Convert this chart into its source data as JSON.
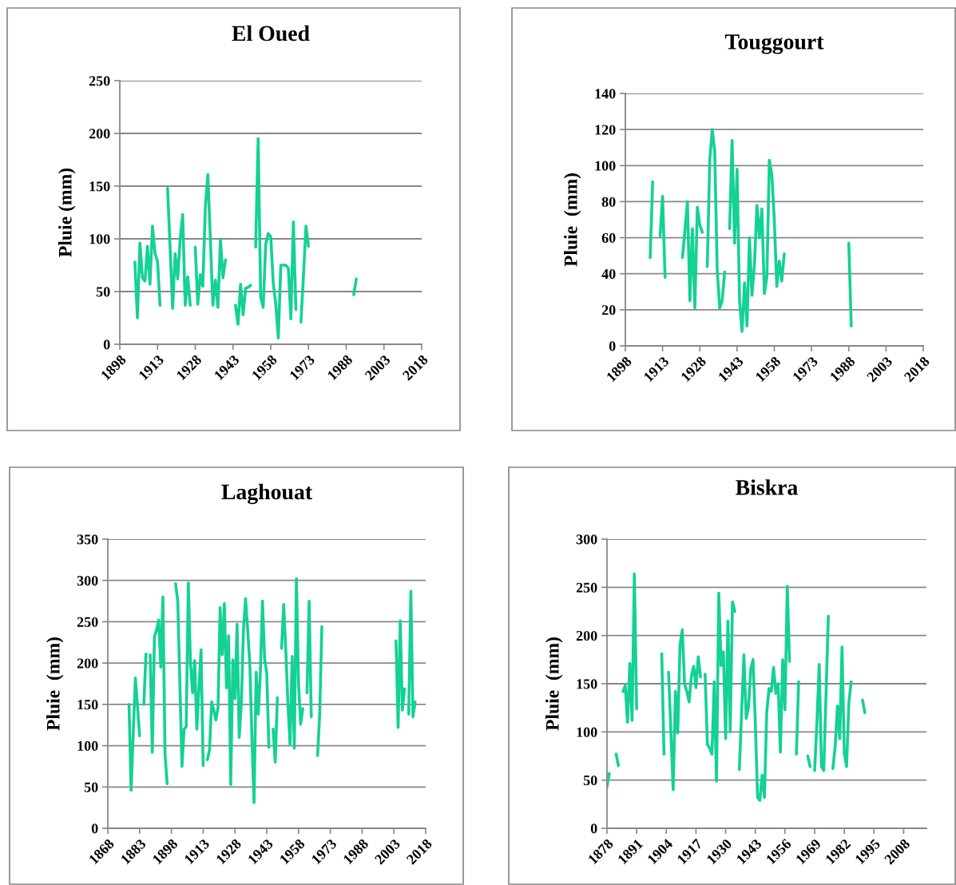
{
  "chart_data": [
    {
      "type": "line",
      "title": "El Oued",
      "ylabel": "Pluie (mm)",
      "xlim": [
        1898,
        2018
      ],
      "xticks": [
        1898,
        1913,
        1928,
        1943,
        1958,
        1973,
        1988,
        2003,
        2018
      ],
      "ylim": [
        0,
        250
      ],
      "yticks": [
        0,
        50,
        100,
        150,
        200,
        250
      ],
      "grid": "y",
      "series": [
        {
          "color": "#14d194",
          "x": [
            1904,
            1905,
            1906,
            1907,
            1908,
            1909,
            1910,
            1911,
            1912,
            1913,
            1914,
            1915,
            1917,
            1918,
            1919,
            1920,
            1921,
            1922,
            1923,
            1924,
            1925,
            1926,
            1927,
            1928,
            1929,
            1930,
            1931,
            1932,
            1933,
            1934,
            1935,
            1936,
            1937,
            1938,
            1939,
            1940,
            1941,
            1944,
            1945,
            1946,
            1947,
            1948,
            1949,
            1950,
            1951,
            1952,
            1953,
            1954,
            1955,
            1956,
            1957,
            1958,
            1959,
            1960,
            1961,
            1962,
            1963,
            1964,
            1965,
            1966,
            1967,
            1968,
            1969,
            1970,
            1971,
            1972,
            1973,
            1974,
            1991,
            1992
          ],
          "values": [
            78,
            25,
            96,
            63,
            60,
            93,
            57,
            112,
            86,
            79,
            37,
            null,
            148,
            91,
            34,
            86,
            62,
            100,
            123,
            37,
            64,
            37,
            null,
            92,
            38,
            66,
            55,
            130,
            161,
            100,
            37,
            61,
            35,
            99,
            63,
            80,
            null,
            37,
            19,
            57,
            28,
            53,
            54,
            56,
            null,
            92,
            195,
            45,
            35,
            95,
            105,
            102,
            58,
            38,
            6,
            75,
            75,
            75,
            72,
            24,
            116,
            33,
            null,
            21,
            65,
            112,
            93,
            null,
            47,
            62
          ]
        }
      ]
    },
    {
      "type": "line",
      "title": "Touggourt",
      "ylabel": "Pluie  (mm)",
      "xlim": [
        1898,
        2018
      ],
      "xticks": [
        1898,
        1913,
        1928,
        1943,
        1958,
        1973,
        1988,
        2003,
        2018
      ],
      "ylim": [
        0,
        140
      ],
      "yticks": [
        0,
        20,
        40,
        60,
        80,
        100,
        120,
        140
      ],
      "grid": "y",
      "series": [
        {
          "color": "#14d194",
          "x": [
            1908,
            1909,
            1910,
            1912,
            1913,
            1914,
            1915,
            1921,
            1922,
            1923,
            1924,
            1925,
            1926,
            1927,
            1928,
            1929,
            1930,
            1931,
            1932,
            1933,
            1934,
            1935,
            1936,
            1937,
            1938,
            1939,
            1940,
            1941,
            1942,
            1943,
            1944,
            1945,
            1946,
            1947,
            1948,
            1949,
            1950,
            1951,
            1952,
            1953,
            1954,
            1955,
            1956,
            1957,
            1958,
            1959,
            1960,
            1961,
            1962,
            1963,
            1988,
            1989
          ],
          "values": [
            49,
            91,
            null,
            61,
            83,
            38,
            null,
            49,
            64,
            80,
            25,
            65,
            21,
            77,
            67,
            63,
            null,
            44,
            103,
            120,
            108,
            42,
            21,
            25,
            41,
            null,
            65,
            114,
            57,
            98,
            25,
            8,
            35,
            11,
            60,
            28,
            45,
            78,
            60,
            76,
            29,
            38,
            103,
            95,
            70,
            33,
            47,
            36,
            51,
            null,
            57,
            11
          ]
        }
      ]
    },
    {
      "type": "line",
      "title": "Laghouat",
      "ylabel": "Pluie  (mm)",
      "xlim": [
        1868,
        2018
      ],
      "xticks": [
        1868,
        1883,
        1898,
        1913,
        1928,
        1943,
        1958,
        1973,
        1988,
        2003,
        2018
      ],
      "ylim": [
        0,
        350
      ],
      "yticks": [
        0,
        50,
        100,
        150,
        200,
        250,
        300,
        350
      ],
      "grid": "y",
      "series": [
        {
          "color": "#14d194",
          "x": [
            1878,
            1879,
            1880,
            1881,
            1882,
            1883,
            1884,
            1885,
            1886,
            1887,
            1888,
            1889,
            1890,
            1891,
            1892,
            1893,
            1894,
            1895,
            1896,
            1897,
            1900,
            1901,
            1902,
            1903,
            1904,
            1905,
            1906,
            1907,
            1908,
            1909,
            1910,
            1911,
            1912,
            1913,
            1914,
            1915,
            1916,
            1917,
            1918,
            1919,
            1920,
            1921,
            1922,
            1923,
            1924,
            1925,
            1926,
            1927,
            1928,
            1929,
            1930,
            1931,
            1932,
            1933,
            1934,
            1935,
            1936,
            1937,
            1938,
            1939,
            1940,
            1941,
            1942,
            1943,
            1944,
            1945,
            1946,
            1947,
            1948,
            1949,
            1950,
            1951,
            1952,
            1953,
            1954,
            1955,
            1956,
            1957,
            1958,
            1959,
            1960,
            1961,
            1962,
            1963,
            1964,
            1965,
            1967,
            1968,
            1969,
            1970,
            2004,
            2005,
            2006,
            2007,
            2008,
            2009,
            2010,
            2011,
            2012,
            2013
          ],
          "values": [
            150,
            46,
            115,
            182,
            148,
            112,
            null,
            150,
            211,
            null,
            210,
            92,
            232,
            240,
            252,
            195,
            280,
            90,
            54,
            null,
            296,
            275,
            175,
            75,
            120,
            123,
            297,
            200,
            164,
            203,
            120,
            170,
            216,
            76,
            null,
            83,
            95,
            153,
            143,
            131,
            146,
            267,
            210,
            272,
            170,
            233,
            53,
            204,
            157,
            247,
            110,
            150,
            240,
            278,
            240,
            200,
            110,
            31,
            189,
            138,
            190,
            275,
            205,
            188,
            98,
            null,
            120,
            80,
            158,
            null,
            218,
            271,
            215,
            150,
            101,
            208,
            97,
            302,
            175,
            126,
            145,
            null,
            164,
            275,
            135,
            null,
            88,
            140,
            244,
            null,
            227,
            122,
            251,
            143,
            169,
            null,
            138,
            287,
            135,
            153
          ]
        }
      ]
    },
    {
      "type": "line",
      "title": "Biskra",
      "ylabel": "Pluie  (mm)",
      "xlim": [
        1878,
        2018
      ],
      "xticks": [
        1878,
        1891,
        1904,
        1917,
        1930,
        1943,
        1956,
        1969,
        1982,
        1995,
        2008
      ],
      "ylim": [
        0,
        300
      ],
      "yticks": [
        0,
        50,
        100,
        150,
        200,
        250,
        300
      ],
      "grid": "y",
      "series": [
        {
          "color": "#14d194",
          "x": [
            1878,
            1879,
            1880,
            1882,
            1883,
            1884,
            1885,
            1886,
            1887,
            1888,
            1889,
            1890,
            1891,
            1892,
            1902,
            1903,
            1904,
            1905,
            1906,
            1907,
            1908,
            1909,
            1910,
            1911,
            1912,
            1913,
            1914,
            1915,
            1916,
            1917,
            1918,
            1919,
            1920,
            1921,
            1922,
            1923,
            1924,
            1925,
            1926,
            1927,
            1928,
            1929,
            1930,
            1931,
            1932,
            1933,
            1934,
            1935,
            1936,
            1937,
            1938,
            1939,
            1940,
            1941,
            1942,
            1943,
            1944,
            1945,
            1946,
            1947,
            1948,
            1949,
            1950,
            1951,
            1952,
            1953,
            1954,
            1955,
            1956,
            1957,
            1958,
            1959,
            1961,
            1962,
            1963,
            1966,
            1967,
            1968,
            1969,
            1970,
            1971,
            1972,
            1973,
            1974,
            1975,
            1976,
            1977,
            1978,
            1979,
            1980,
            1981,
            1982,
            1983,
            1984,
            1985,
            1986,
            1990,
            1991
          ],
          "values": [
            43,
            57,
            null,
            77,
            65,
            null,
            142,
            148,
            110,
            171,
            112,
            264,
            124,
            null,
            181,
            77,
            null,
            162,
            100,
            40,
            142,
            99,
            190,
            206,
            150,
            142,
            131,
            158,
            168,
            146,
            178,
            157,
            null,
            160,
            87,
            83,
            77,
            152,
            49,
            244,
            169,
            183,
            93,
            215,
            100,
            235,
            225,
            null,
            61,
            120,
            180,
            114,
            125,
            165,
            175,
            110,
            32,
            29,
            55,
            32,
            120,
            145,
            142,
            167,
            140,
            150,
            79,
            175,
            123,
            251,
            173,
            null,
            77,
            152,
            null,
            75,
            64,
            null,
            60,
            110,
            170,
            64,
            60,
            140,
            220,
            null,
            62,
            85,
            127,
            93,
            188,
            78,
            64,
            130,
            152,
            null,
            133,
            120
          ]
        }
      ]
    }
  ]
}
